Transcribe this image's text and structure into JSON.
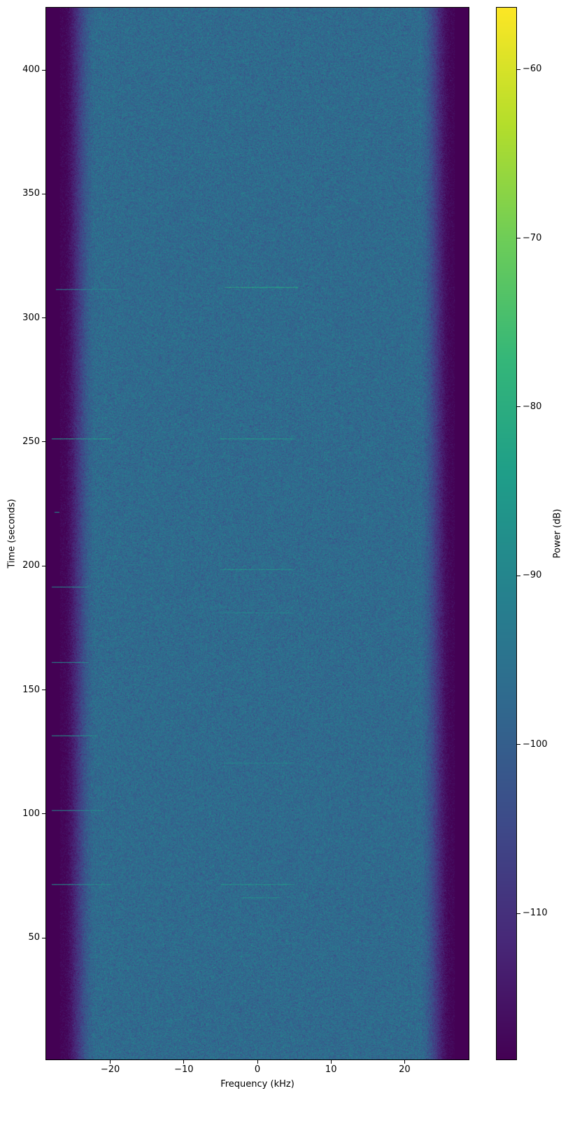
{
  "chart_data": {
    "type": "heatmap",
    "xlabel": "Frequency (kHz)",
    "ylabel": "Time (seconds)",
    "colorbar_label": "Power (dB)",
    "colormap": "viridis",
    "xlim": [
      -28.8,
      28.8
    ],
    "ylim": [
      0.7,
      425.4
    ],
    "clim": [
      -118.7,
      -56.3
    ],
    "xticks": [
      -20,
      -10,
      0,
      10,
      20
    ],
    "yticks": [
      50,
      100,
      150,
      200,
      250,
      300,
      350,
      400
    ],
    "cticks": [
      -60,
      -70,
      -80,
      -90,
      -100,
      -110
    ],
    "noise_floor_db": -97,
    "band_edge_db": -118,
    "passband_khz": [
      -22,
      22
    ],
    "stopband_khz": [
      -26.5,
      26.5
    ],
    "bursts": [
      {
        "time": 312.6,
        "f": [
          -4.5,
          5.5
        ],
        "db": -82
      },
      {
        "time": 311.7,
        "f": [
          -27.5,
          -19
        ],
        "db": -90
      },
      {
        "time": 251.3,
        "f": [
          -28,
          -20
        ],
        "db": -85
      },
      {
        "time": 251.3,
        "f": [
          -5,
          5
        ],
        "db": -85
      },
      {
        "time": 221.7,
        "f": [
          -27.7,
          -27
        ],
        "db": -88
      },
      {
        "time": 198.8,
        "f": [
          -5,
          5
        ],
        "db": -87
      },
      {
        "time": 191.5,
        "f": [
          -28,
          -23
        ],
        "db": -88
      },
      {
        "time": 181.2,
        "f": [
          -5,
          5
        ],
        "db": -90
      },
      {
        "time": 161.2,
        "f": [
          -28,
          -23
        ],
        "db": -89
      },
      {
        "time": 131.5,
        "f": [
          -28,
          -22
        ],
        "db": -86
      },
      {
        "time": 120.6,
        "f": [
          -5,
          5
        ],
        "db": -91
      },
      {
        "time": 101.5,
        "f": [
          -28,
          -21
        ],
        "db": -89
      },
      {
        "time": 71.4,
        "f": [
          -28,
          -20
        ],
        "db": -87
      },
      {
        "time": 71.4,
        "f": [
          -5,
          5
        ],
        "db": -86
      },
      {
        "time": 66.2,
        "f": [
          -2,
          3
        ],
        "db": -88
      }
    ]
  }
}
